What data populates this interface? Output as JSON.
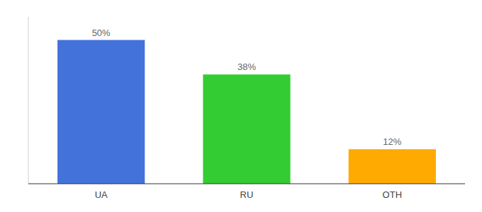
{
  "chart_data": {
    "type": "bar",
    "categories": [
      "UA",
      "RU",
      "OTH"
    ],
    "values": [
      50,
      38,
      12
    ],
    "value_labels": [
      "50%",
      "38%",
      "12%"
    ],
    "colors": [
      "#4472db",
      "#33cc33",
      "#ffaa00"
    ],
    "ylim": [
      0,
      58
    ],
    "data_labels": true,
    "tick_labels": "x",
    "grid": false
  }
}
